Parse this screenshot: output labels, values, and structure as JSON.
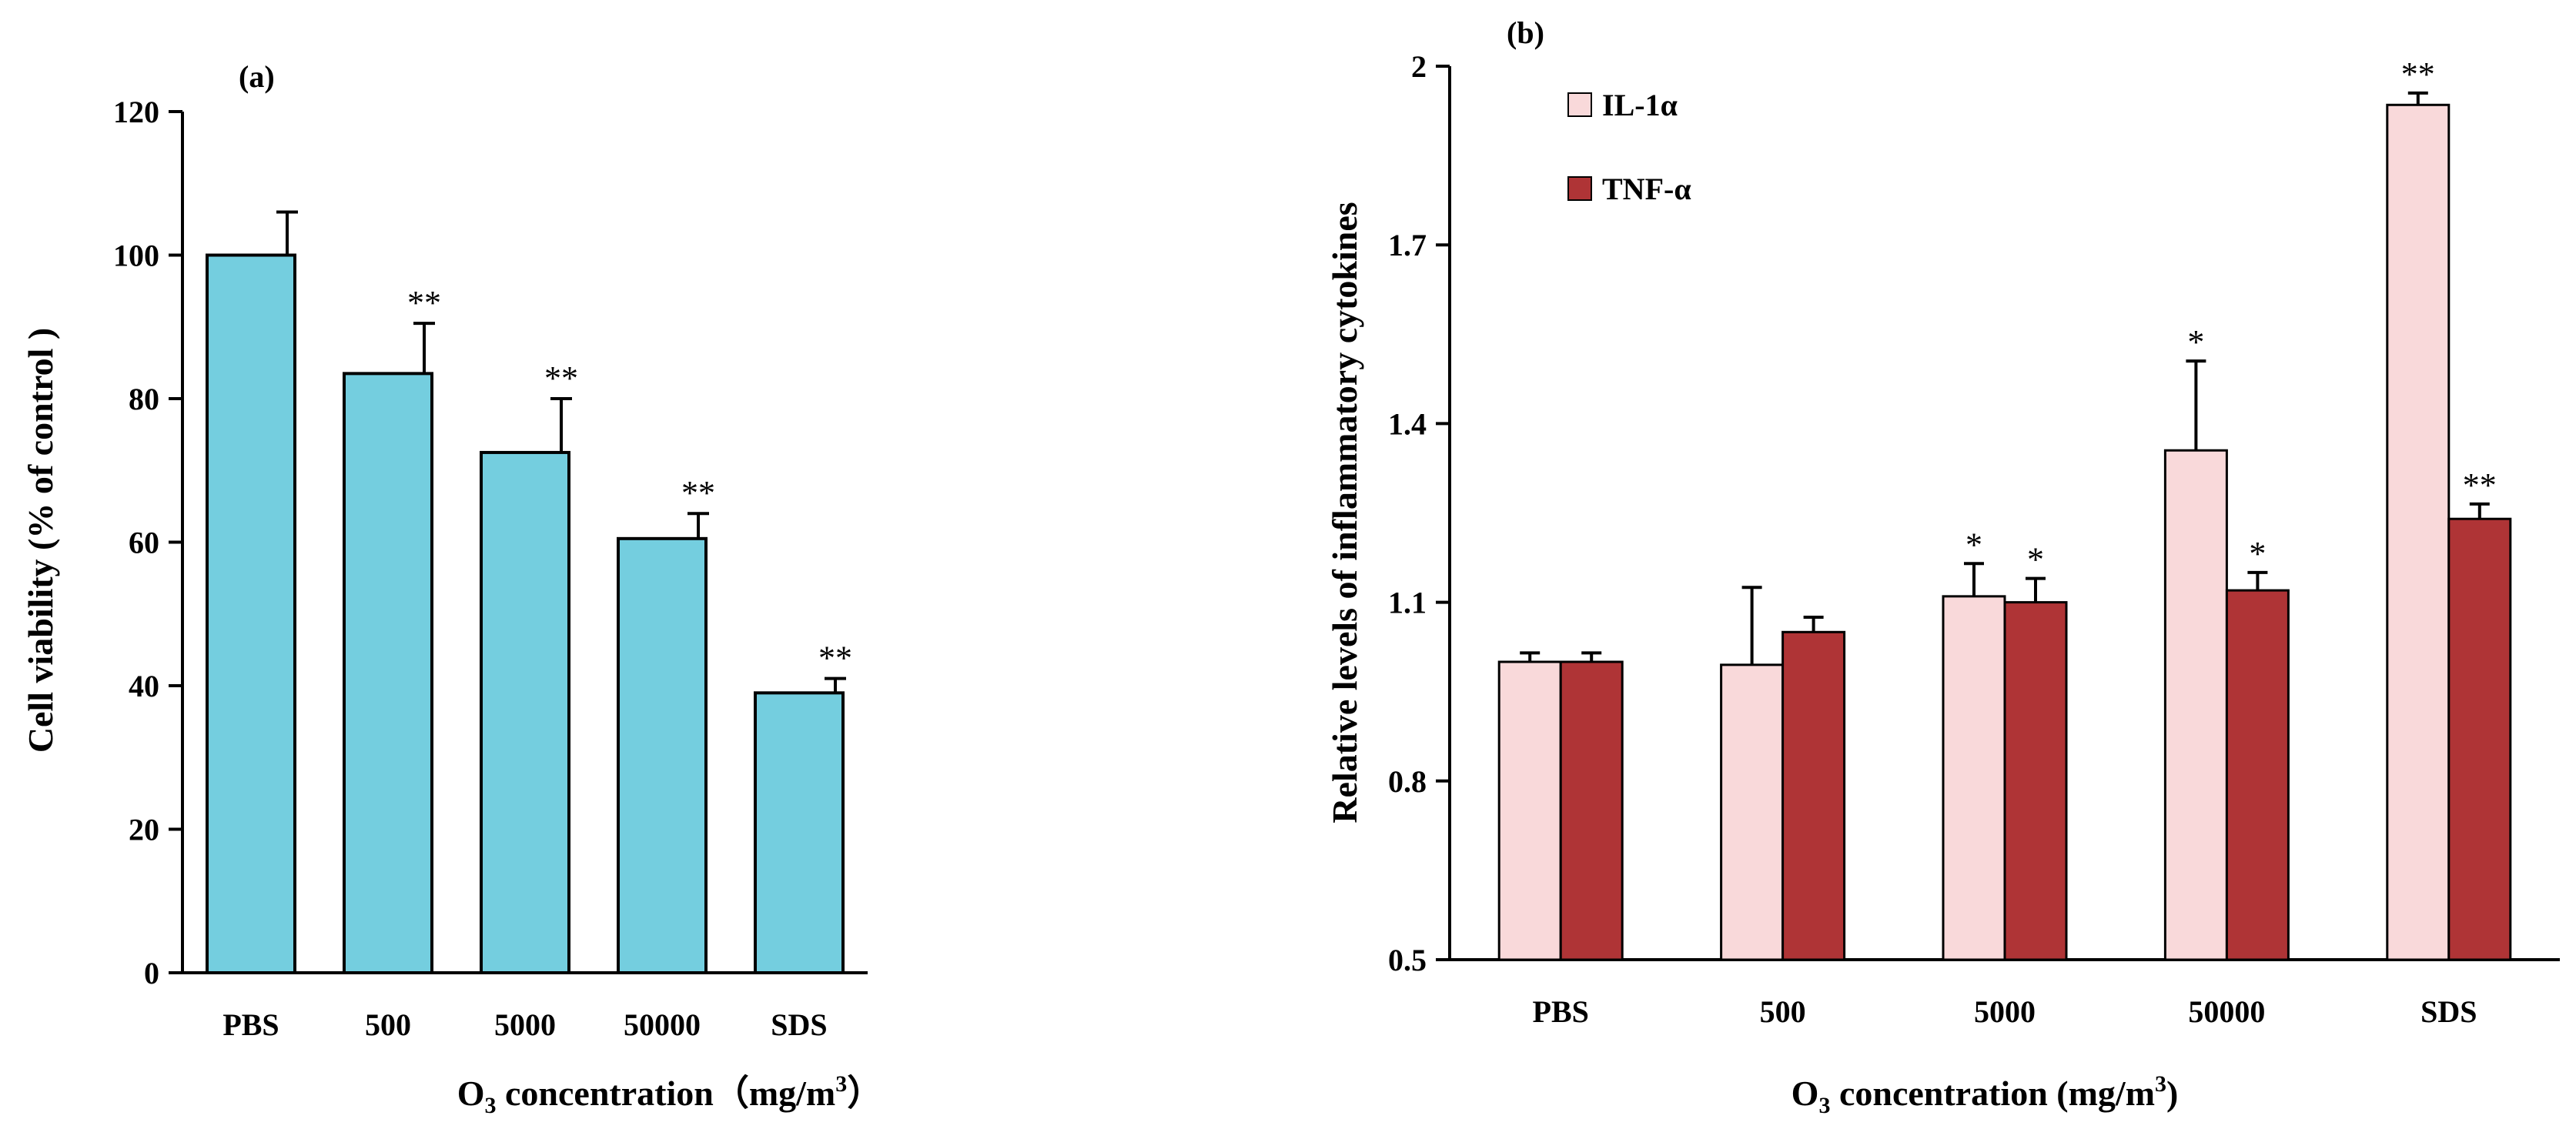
{
  "colors": {
    "bar_a": "#74CEDF",
    "il1a": "#F9D9DA",
    "tnfa": "#AF3436",
    "axis": "#000000"
  },
  "chart_data": [
    {
      "type": "bar",
      "panel_label": "(a)",
      "categories": [
        "PBS",
        "500",
        "5000",
        "50000",
        "SDS"
      ],
      "series": [
        {
          "name": "Cell viability",
          "values": [
            100,
            83.5,
            72.5,
            60.5,
            39
          ],
          "errors": [
            6,
            7,
            7.5,
            3.5,
            2
          ],
          "significance": [
            "",
            "**",
            "**",
            "**",
            "**"
          ]
        }
      ],
      "ylim": [
        0,
        120
      ],
      "yticks": [
        "0",
        "20",
        "40",
        "60",
        "80",
        "100",
        "120"
      ],
      "ylabel": "Cell viability (% of control )",
      "xlabel_main": "O",
      "xlabel_sub": "3",
      "xlabel_rest": " concentration（mg/m",
      "xlabel_sup": "3",
      "xlabel_end": "）",
      "grid": false
    },
    {
      "type": "bar",
      "panel_label": "(b)",
      "categories": [
        "PBS",
        "500",
        "5000",
        "50000",
        "SDS"
      ],
      "series": [
        {
          "name": "IL-1α",
          "values": [
            1.0,
            0.995,
            1.11,
            1.355,
            1.935
          ],
          "errors": [
            0.015,
            0.13,
            0.055,
            0.15,
            0.02
          ],
          "significance": [
            "",
            "",
            "*",
            "*",
            "**"
          ]
        },
        {
          "name": "TNF-α",
          "values": [
            1.0,
            1.05,
            1.1,
            1.12,
            1.24
          ],
          "errors": [
            0.015,
            0.025,
            0.04,
            0.03,
            0.025
          ],
          "significance": [
            "",
            "",
            "*",
            "*",
            "**"
          ]
        }
      ],
      "ylim": [
        0.5,
        2.0
      ],
      "yticks": [
        "0.5",
        "0.8",
        "1.1",
        "1.4",
        "1.7",
        "2"
      ],
      "ylabel": "Relative levels of inflammatory cytokines",
      "xlabel_main": "O",
      "xlabel_sub": "3",
      "xlabel_rest": " concentration (mg/m",
      "xlabel_sup": "3",
      "xlabel_end": ")",
      "legend_position": "top-left",
      "grid": false
    }
  ]
}
